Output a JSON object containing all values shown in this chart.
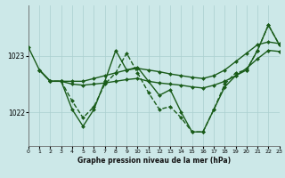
{
  "title": "Graphe pression niveau de la mer (hPa)",
  "background_color": "#cce8e8",
  "grid_color": "#aacfcf",
  "line_color": "#1a5c1a",
  "xlim": [
    0,
    23
  ],
  "ylim": [
    1021.4,
    1023.9
  ],
  "yticks": [
    1022,
    1023
  ],
  "xticks": [
    0,
    1,
    2,
    3,
    4,
    5,
    6,
    7,
    8,
    9,
    10,
    11,
    12,
    13,
    14,
    15,
    16,
    17,
    18,
    19,
    20,
    21,
    22,
    23
  ],
  "series": [
    {
      "x": [
        0,
        1,
        2,
        3,
        4,
        5,
        6,
        7,
        8,
        9,
        10,
        11,
        12,
        13,
        14,
        15,
        16,
        17,
        18,
        19,
        20,
        21,
        22,
        23
      ],
      "y": [
        1023.15,
        1022.75,
        1022.55,
        1022.55,
        1022.05,
        1021.75,
        1022.05,
        1022.55,
        1023.1,
        1022.75,
        1022.8,
        1022.55,
        1022.3,
        1022.4,
        1022.0,
        1021.65,
        1021.65,
        1022.05,
        1022.45,
        1022.65,
        1022.75,
        1023.1,
        1023.55,
        1023.2
      ],
      "style": "-",
      "marker": "D",
      "markersize": 2.0,
      "linewidth": 1.0
    },
    {
      "x": [
        1,
        2,
        3,
        4,
        5,
        6,
        7,
        8,
        9,
        10,
        11,
        12,
        13,
        14,
        15,
        16,
        17,
        18,
        19,
        20,
        21,
        22,
        23
      ],
      "y": [
        1022.75,
        1022.55,
        1022.55,
        1022.55,
        1022.55,
        1022.6,
        1022.65,
        1022.7,
        1022.75,
        1022.78,
        1022.75,
        1022.72,
        1022.68,
        1022.65,
        1022.62,
        1022.6,
        1022.65,
        1022.75,
        1022.9,
        1023.05,
        1023.2,
        1023.25,
        1023.22
      ],
      "style": "-",
      "marker": "D",
      "markersize": 2.0,
      "linewidth": 1.0
    },
    {
      "x": [
        1,
        2,
        3,
        4,
        5,
        6,
        7,
        8,
        9,
        10,
        11,
        12,
        13,
        14,
        15,
        16,
        17,
        18,
        19,
        20,
        21,
        22,
        23
      ],
      "y": [
        1022.75,
        1022.55,
        1022.55,
        1022.5,
        1022.48,
        1022.5,
        1022.52,
        1022.55,
        1022.58,
        1022.6,
        1022.55,
        1022.52,
        1022.5,
        1022.48,
        1022.45,
        1022.43,
        1022.48,
        1022.55,
        1022.65,
        1022.78,
        1022.95,
        1023.1,
        1023.08
      ],
      "style": "-",
      "marker": "D",
      "markersize": 2.0,
      "linewidth": 1.0
    },
    {
      "x": [
        1,
        2,
        3,
        4,
        5,
        6,
        7,
        8,
        9,
        10,
        11,
        12,
        13,
        14,
        15,
        16,
        17,
        18,
        19,
        20,
        21,
        22,
        23
      ],
      "y": [
        1022.75,
        1022.55,
        1022.55,
        1022.2,
        1021.9,
        1022.1,
        1022.5,
        1022.7,
        1023.05,
        1022.7,
        1022.35,
        1022.05,
        1022.1,
        1021.9,
        1021.65,
        1021.65,
        1022.05,
        1022.5,
        1022.7,
        1022.75,
        1023.1,
        1023.55,
        1023.2
      ],
      "style": "--",
      "marker": "D",
      "markersize": 2.0,
      "linewidth": 1.0
    }
  ]
}
